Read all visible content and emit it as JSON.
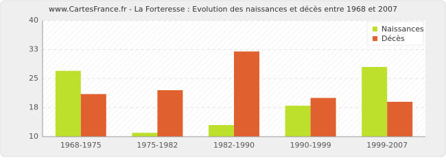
{
  "chart_data": {
    "type": "bar",
    "title": "www.CartesFrance.fr - La Forteresse : Evolution des naissances et décès entre 1968 et 2007",
    "categories": [
      "1968-1975",
      "1975-1982",
      "1982-1990",
      "1990-1999",
      "1999-2007"
    ],
    "series": [
      {
        "name": "Naissances",
        "color": "#bde02c",
        "values": [
          27,
          11,
          13,
          18,
          28
        ]
      },
      {
        "name": "Décès",
        "color": "#e06030",
        "values": [
          21,
          22,
          32,
          20,
          19
        ]
      }
    ],
    "ylim": [
      10,
      40
    ],
    "yticks": [
      10,
      {
        "value": 17.5,
        "label": "18"
      },
      25,
      {
        "value": 32.5,
        "label": "33"
      },
      40
    ],
    "grid": true,
    "legend": "top-right"
  }
}
